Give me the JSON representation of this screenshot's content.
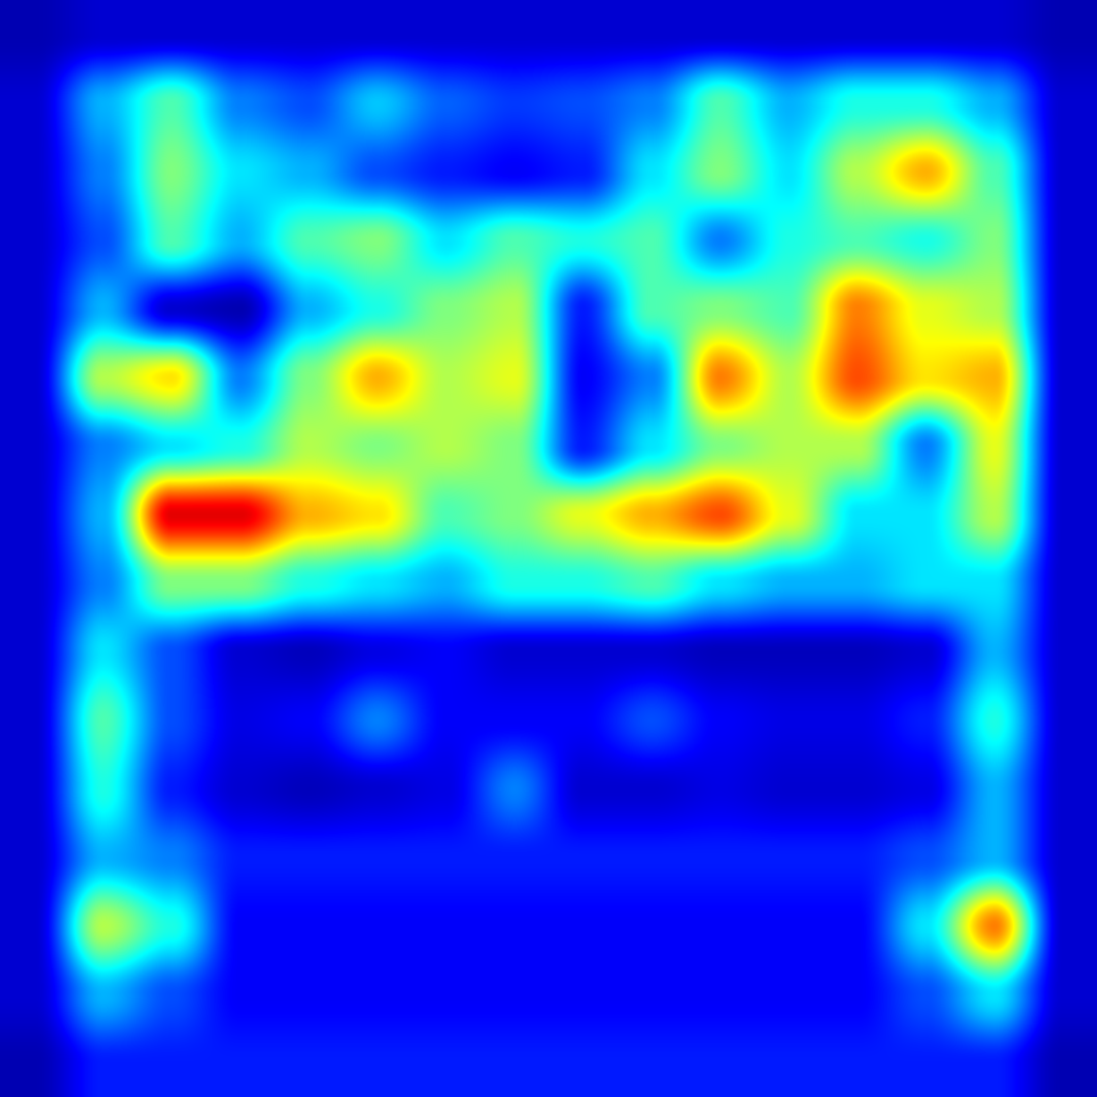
{
  "colormap": {
    "name": "jet",
    "stops": [
      "#00007f",
      "#0000ff",
      "#007fff",
      "#00ffff",
      "#7fff7f",
      "#ffff00",
      "#ff7f00",
      "#ff0000",
      "#7f0000"
    ]
  },
  "background_color": "#000080",
  "chart_data": {
    "type": "heatmap",
    "title": "",
    "xlabel": "",
    "ylabel": "",
    "value_range": [
      0,
      1
    ],
    "rows": 16,
    "cols": 16,
    "values": [
      [
        0.05,
        0.08,
        0.08,
        0.08,
        0.08,
        0.08,
        0.08,
        0.08,
        0.08,
        0.08,
        0.08,
        0.08,
        0.08,
        0.08,
        0.08,
        0.05
      ],
      [
        0.08,
        0.3,
        0.45,
        0.25,
        0.2,
        0.32,
        0.22,
        0.18,
        0.2,
        0.25,
        0.45,
        0.3,
        0.4,
        0.4,
        0.3,
        0.08
      ],
      [
        0.08,
        0.25,
        0.5,
        0.35,
        0.3,
        0.2,
        0.15,
        0.12,
        0.15,
        0.35,
        0.5,
        0.35,
        0.55,
        0.7,
        0.45,
        0.08
      ],
      [
        0.08,
        0.2,
        0.45,
        0.3,
        0.45,
        0.5,
        0.35,
        0.45,
        0.4,
        0.45,
        0.25,
        0.4,
        0.45,
        0.4,
        0.5,
        0.08
      ],
      [
        0.08,
        0.3,
        0.08,
        0.05,
        0.3,
        0.4,
        0.5,
        0.55,
        0.15,
        0.45,
        0.5,
        0.45,
        0.75,
        0.6,
        0.55,
        0.08
      ],
      [
        0.08,
        0.55,
        0.65,
        0.25,
        0.5,
        0.7,
        0.55,
        0.6,
        0.12,
        0.25,
        0.75,
        0.55,
        0.8,
        0.65,
        0.7,
        0.08
      ],
      [
        0.08,
        0.25,
        0.35,
        0.4,
        0.55,
        0.5,
        0.55,
        0.5,
        0.15,
        0.35,
        0.5,
        0.55,
        0.55,
        0.25,
        0.6,
        0.08
      ],
      [
        0.08,
        0.3,
        0.9,
        0.9,
        0.7,
        0.65,
        0.45,
        0.5,
        0.6,
        0.7,
        0.8,
        0.6,
        0.35,
        0.35,
        0.55,
        0.08
      ],
      [
        0.08,
        0.25,
        0.5,
        0.5,
        0.4,
        0.35,
        0.3,
        0.4,
        0.4,
        0.45,
        0.35,
        0.3,
        0.3,
        0.35,
        0.35,
        0.08
      ],
      [
        0.08,
        0.35,
        0.2,
        0.08,
        0.06,
        0.1,
        0.12,
        0.08,
        0.08,
        0.08,
        0.06,
        0.06,
        0.06,
        0.08,
        0.3,
        0.08
      ],
      [
        0.08,
        0.45,
        0.2,
        0.1,
        0.12,
        0.25,
        0.12,
        0.12,
        0.12,
        0.2,
        0.12,
        0.1,
        0.1,
        0.15,
        0.4,
        0.08
      ],
      [
        0.08,
        0.4,
        0.15,
        0.08,
        0.06,
        0.08,
        0.1,
        0.25,
        0.08,
        0.08,
        0.1,
        0.08,
        0.08,
        0.1,
        0.3,
        0.08
      ],
      [
        0.08,
        0.3,
        0.25,
        0.15,
        0.15,
        0.15,
        0.15,
        0.15,
        0.15,
        0.15,
        0.15,
        0.15,
        0.15,
        0.2,
        0.3,
        0.08
      ],
      [
        0.08,
        0.55,
        0.4,
        0.12,
        0.12,
        0.12,
        0.12,
        0.12,
        0.12,
        0.12,
        0.12,
        0.12,
        0.12,
        0.35,
        0.75,
        0.08
      ],
      [
        0.08,
        0.3,
        0.2,
        0.12,
        0.12,
        0.12,
        0.12,
        0.12,
        0.12,
        0.12,
        0.12,
        0.12,
        0.12,
        0.2,
        0.35,
        0.08
      ],
      [
        0.05,
        0.15,
        0.15,
        0.15,
        0.15,
        0.15,
        0.15,
        0.15,
        0.15,
        0.15,
        0.15,
        0.15,
        0.15,
        0.15,
        0.15,
        0.05
      ]
    ]
  }
}
